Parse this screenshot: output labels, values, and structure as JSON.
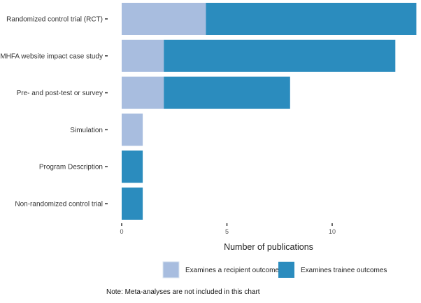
{
  "chart_data": {
    "type": "bar",
    "orientation": "horizontal",
    "stacked": true,
    "categories": [
      "Randomized control trial (RCT)",
      "MHFA website impact case study",
      "Pre- and post-test or survey",
      "Simulation",
      "Program Description",
      "Non-randomized control trial"
    ],
    "series": [
      {
        "name": "Examines a recipient outcome",
        "values": [
          4,
          2,
          2,
          1,
          0,
          0
        ],
        "color": "#a8bddf"
      },
      {
        "name": "Examines trainee outcomes",
        "values": [
          10,
          11,
          6,
          0,
          1,
          1
        ],
        "color": "#2b8cbe"
      }
    ],
    "xlabel": "Number of publications",
    "ylabel": "",
    "xticks": [
      0,
      5,
      10
    ],
    "xlim": [
      0,
      14
    ],
    "grid": false,
    "legend_position": "bottom",
    "note": "Note: Meta-analyses are not included in this chart"
  }
}
